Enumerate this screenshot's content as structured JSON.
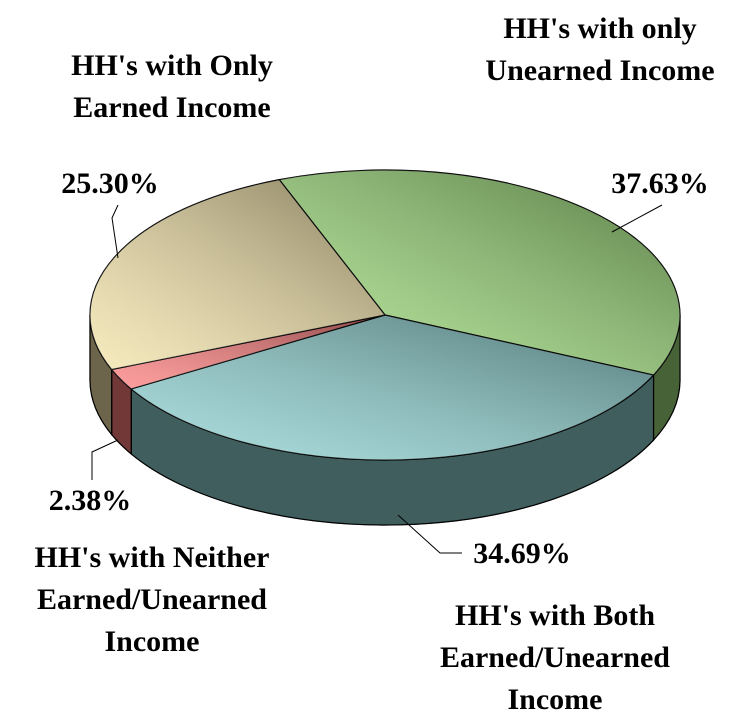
{
  "chart_data": {
    "type": "pie",
    "categories": [
      "HH's with only Unearned Income",
      "HH's with Both Earned/Unearned Income",
      "HH's with Neither Earned/Unearned Income",
      "HH's with Only Earned Income"
    ],
    "values": [
      37.63,
      34.69,
      2.38,
      25.3
    ],
    "value_labels": [
      "37.63%",
      "34.69%",
      "2.38%",
      "25.30%"
    ],
    "colors": [
      "#9ddc7a",
      "#8fd3d3",
      "#ff7d7d",
      "#f3e3a8"
    ]
  }
}
